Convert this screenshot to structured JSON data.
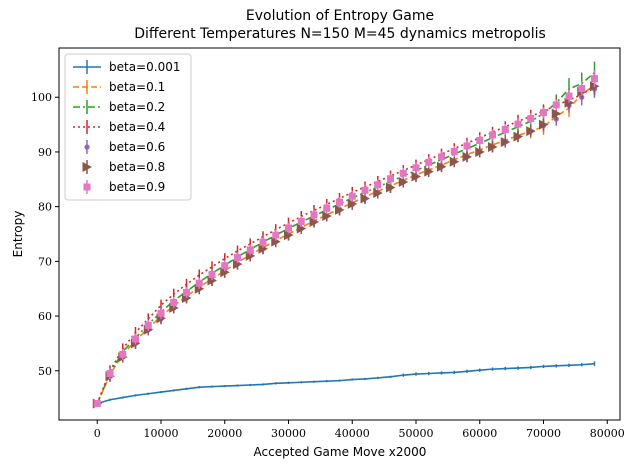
{
  "chart_data": {
    "type": "line",
    "title": "Evolution of Entropy Game",
    "subtitle": "Different Temperatures N=150 M=45 dynamics metropolis",
    "xlabel": "Accepted Game Move x2000",
    "ylabel": "Entropy",
    "xlim": [
      -6000,
      82000
    ],
    "ylim": [
      41,
      109
    ],
    "xticks": [
      0,
      10000,
      20000,
      30000,
      40000,
      50000,
      60000,
      70000,
      80000
    ],
    "yticks": [
      50,
      60,
      70,
      80,
      90,
      100
    ],
    "grid": false,
    "legend_position": "top-left",
    "x": [
      0,
      2000,
      4000,
      6000,
      8000,
      10000,
      12000,
      14000,
      16000,
      18000,
      20000,
      22000,
      24000,
      26000,
      28000,
      30000,
      32000,
      34000,
      36000,
      38000,
      40000,
      42000,
      44000,
      46000,
      48000,
      50000,
      52000,
      54000,
      56000,
      58000,
      60000,
      62000,
      64000,
      66000,
      68000,
      70000,
      72000,
      74000,
      76000,
      78000
    ],
    "series": [
      {
        "name": "beta=0.001",
        "color": "#1f77b4",
        "line": "solid",
        "marker": "none",
        "values": [
          44.0,
          44.7,
          45.1,
          45.5,
          45.8,
          46.1,
          46.4,
          46.7,
          47.0,
          47.1,
          47.2,
          47.3,
          47.4,
          47.5,
          47.7,
          47.8,
          47.9,
          48.0,
          48.1,
          48.2,
          48.4,
          48.5,
          48.7,
          48.9,
          49.2,
          49.4,
          49.5,
          49.6,
          49.7,
          49.9,
          50.1,
          50.3,
          50.4,
          50.5,
          50.6,
          50.8,
          50.9,
          51.0,
          51.1,
          51.3
        ],
        "errors": [
          0.2,
          0.2,
          0.2,
          0.2,
          0.2,
          0.2,
          0.2,
          0.2,
          0.2,
          0.2,
          0.2,
          0.2,
          0.2,
          0.2,
          0.2,
          0.2,
          0.2,
          0.2,
          0.2,
          0.2,
          0.2,
          0.2,
          0.2,
          0.2,
          0.3,
          0.3,
          0.3,
          0.3,
          0.3,
          0.3,
          0.3,
          0.3,
          0.3,
          0.3,
          0.3,
          0.3,
          0.3,
          0.3,
          0.3,
          0.4
        ]
      },
      {
        "name": "beta=0.1",
        "color": "#ff7f0e",
        "line": "dashed",
        "marker": "none",
        "values": [
          44.0,
          49.3,
          53.0,
          55.5,
          57.8,
          59.9,
          61.9,
          63.6,
          65.3,
          66.8,
          68.3,
          69.8,
          71.2,
          72.5,
          73.8,
          75.0,
          76.2,
          77.4,
          78.5,
          79.6,
          80.7,
          81.8,
          82.8,
          83.8,
          84.8,
          85.8,
          86.7,
          87.6,
          88.6,
          89.5,
          90.4,
          91.3,
          92.1,
          93.0,
          93.8,
          94.6,
          96.5,
          98.0,
          100.5,
          102.2
        ],
        "errors": [
          0.5,
          1.0,
          1.0,
          1.0,
          1.0,
          1.0,
          1.0,
          1.0,
          1.0,
          1.0,
          1.0,
          1.0,
          1.0,
          1.0,
          1.0,
          1.0,
          1.0,
          1.0,
          1.0,
          1.0,
          1.0,
          1.0,
          1.0,
          1.0,
          1.0,
          1.0,
          1.0,
          1.0,
          1.2,
          1.2,
          1.2,
          1.2,
          1.2,
          1.2,
          1.3,
          1.5,
          1.5,
          1.6,
          1.8,
          2.0
        ]
      },
      {
        "name": "beta=0.2",
        "color": "#2ca02c",
        "line": "dashdot",
        "marker": "none",
        "values": [
          44.0,
          49.5,
          53.5,
          56.0,
          58.5,
          60.7,
          62.8,
          64.5,
          66.2,
          67.8,
          69.3,
          70.8,
          72.2,
          73.5,
          74.8,
          76.0,
          77.2,
          78.3,
          79.4,
          80.5,
          81.6,
          82.6,
          83.6,
          84.6,
          85.6,
          86.6,
          87.6,
          88.6,
          89.6,
          90.6,
          91.6,
          92.6,
          93.6,
          94.6,
          95.6,
          97.0,
          99.0,
          101.5,
          102.5,
          104.5
        ],
        "errors": [
          0.5,
          1.0,
          1.0,
          1.0,
          1.0,
          1.0,
          1.0,
          1.0,
          1.0,
          1.0,
          1.0,
          1.0,
          1.0,
          1.0,
          1.0,
          1.0,
          1.0,
          1.0,
          1.0,
          1.0,
          1.0,
          1.0,
          1.0,
          1.0,
          1.0,
          1.0,
          1.0,
          1.0,
          1.0,
          1.0,
          1.0,
          1.0,
          1.2,
          1.2,
          1.3,
          1.4,
          1.5,
          2.0,
          2.0,
          2.0
        ]
      },
      {
        "name": "beta=0.4",
        "color": "#d62728",
        "line": "dotted",
        "marker": "none",
        "values": [
          44.0,
          50.0,
          54.0,
          57.0,
          59.5,
          62.0,
          64.0,
          65.8,
          67.5,
          69.0,
          70.5,
          71.9,
          73.2,
          74.5,
          75.8,
          77.0,
          78.2,
          79.3,
          80.4,
          81.5,
          82.6,
          83.6,
          84.6,
          85.6,
          86.6,
          87.6,
          88.6,
          89.6,
          90.6,
          91.6,
          92.6,
          93.6,
          94.6,
          95.6,
          96.5,
          97.5,
          98.5,
          99.5,
          100.5,
          102.0
        ],
        "errors": [
          0.5,
          1.0,
          1.0,
          1.0,
          1.0,
          1.0,
          1.0,
          1.0,
          1.0,
          1.0,
          1.0,
          1.0,
          1.0,
          1.0,
          1.0,
          1.0,
          1.0,
          1.0,
          1.0,
          1.0,
          1.0,
          1.0,
          1.0,
          1.0,
          1.0,
          1.0,
          1.0,
          1.0,
          1.0,
          1.0,
          1.0,
          1.0,
          1.0,
          1.2,
          1.2,
          1.2,
          1.3,
          1.4,
          1.5,
          1.5
        ]
      },
      {
        "name": "beta=0.6",
        "color": "#9467bd",
        "line": "none",
        "marker": "circle",
        "values": [
          44.0,
          49.0,
          52.5,
          55.0,
          57.5,
          59.5,
          61.5,
          63.3,
          65.0,
          66.5,
          68.0,
          69.5,
          71.0,
          72.3,
          73.6,
          74.8,
          76.0,
          77.2,
          78.3,
          79.4,
          80.4,
          81.5,
          82.5,
          83.5,
          84.5,
          85.5,
          86.5,
          87.4,
          88.3,
          89.2,
          90.1,
          91.0,
          91.9,
          92.8,
          93.8,
          94.8,
          96.0,
          98.5,
          100.0,
          101.5
        ],
        "errors": [
          0.5,
          1.0,
          1.0,
          1.0,
          1.0,
          1.0,
          1.0,
          1.0,
          1.0,
          1.0,
          1.0,
          1.0,
          1.0,
          1.0,
          1.0,
          1.0,
          1.0,
          1.0,
          1.0,
          1.0,
          1.0,
          1.0,
          1.0,
          1.0,
          1.0,
          1.0,
          1.0,
          1.0,
          1.0,
          1.0,
          1.0,
          1.0,
          1.0,
          1.0,
          1.0,
          1.2,
          1.2,
          1.3,
          1.5,
          1.6
        ]
      },
      {
        "name": "beta=0.8",
        "color": "#8c564b",
        "line": "none",
        "marker": "triangle-right",
        "values": [
          44.0,
          49.0,
          52.5,
          55.0,
          57.5,
          59.6,
          61.5,
          63.3,
          65.0,
          66.5,
          68.0,
          69.5,
          71.0,
          72.3,
          73.6,
          74.8,
          76.0,
          77.2,
          78.3,
          79.4,
          80.5,
          81.5,
          82.5,
          83.5,
          84.5,
          85.5,
          86.4,
          87.3,
          88.2,
          89.1,
          90.0,
          90.9,
          91.8,
          92.8,
          93.8,
          95.0,
          97.0,
          99.0,
          101.0,
          102.0
        ],
        "errors": [
          0.5,
          1.0,
          1.0,
          1.0,
          1.0,
          1.0,
          1.0,
          1.0,
          1.0,
          1.0,
          1.0,
          1.0,
          1.0,
          1.0,
          1.0,
          1.0,
          1.0,
          1.0,
          1.0,
          1.0,
          1.0,
          1.0,
          1.0,
          1.0,
          1.0,
          1.0,
          1.0,
          1.0,
          1.0,
          1.0,
          1.0,
          1.0,
          1.0,
          1.0,
          1.0,
          1.0,
          1.2,
          1.2,
          1.3,
          1.5
        ]
      },
      {
        "name": "beta=0.9",
        "color": "#e377c2",
        "line": "none",
        "marker": "square",
        "values": [
          44.0,
          49.5,
          53.0,
          55.8,
          58.3,
          60.5,
          62.5,
          64.3,
          66.0,
          67.6,
          69.2,
          70.7,
          72.1,
          73.5,
          74.8,
          76.1,
          77.3,
          78.5,
          79.7,
          80.8,
          81.9,
          83.0,
          84.0,
          85.1,
          86.1,
          87.1,
          88.1,
          89.1,
          90.1,
          91.1,
          92.1,
          93.1,
          94.1,
          95.1,
          96.1,
          97.2,
          98.6,
          100.2,
          101.6,
          103.4
        ],
        "errors": [
          0.5,
          1.0,
          1.0,
          1.0,
          1.0,
          1.0,
          1.0,
          1.0,
          1.0,
          1.0,
          1.0,
          1.0,
          1.0,
          1.0,
          1.0,
          1.0,
          1.0,
          1.0,
          1.0,
          1.0,
          1.0,
          1.0,
          1.0,
          1.0,
          1.0,
          1.0,
          1.0,
          1.0,
          1.0,
          1.0,
          1.0,
          1.0,
          1.0,
          1.0,
          1.0,
          1.0,
          1.0,
          1.2,
          1.3,
          1.5
        ]
      }
    ]
  }
}
